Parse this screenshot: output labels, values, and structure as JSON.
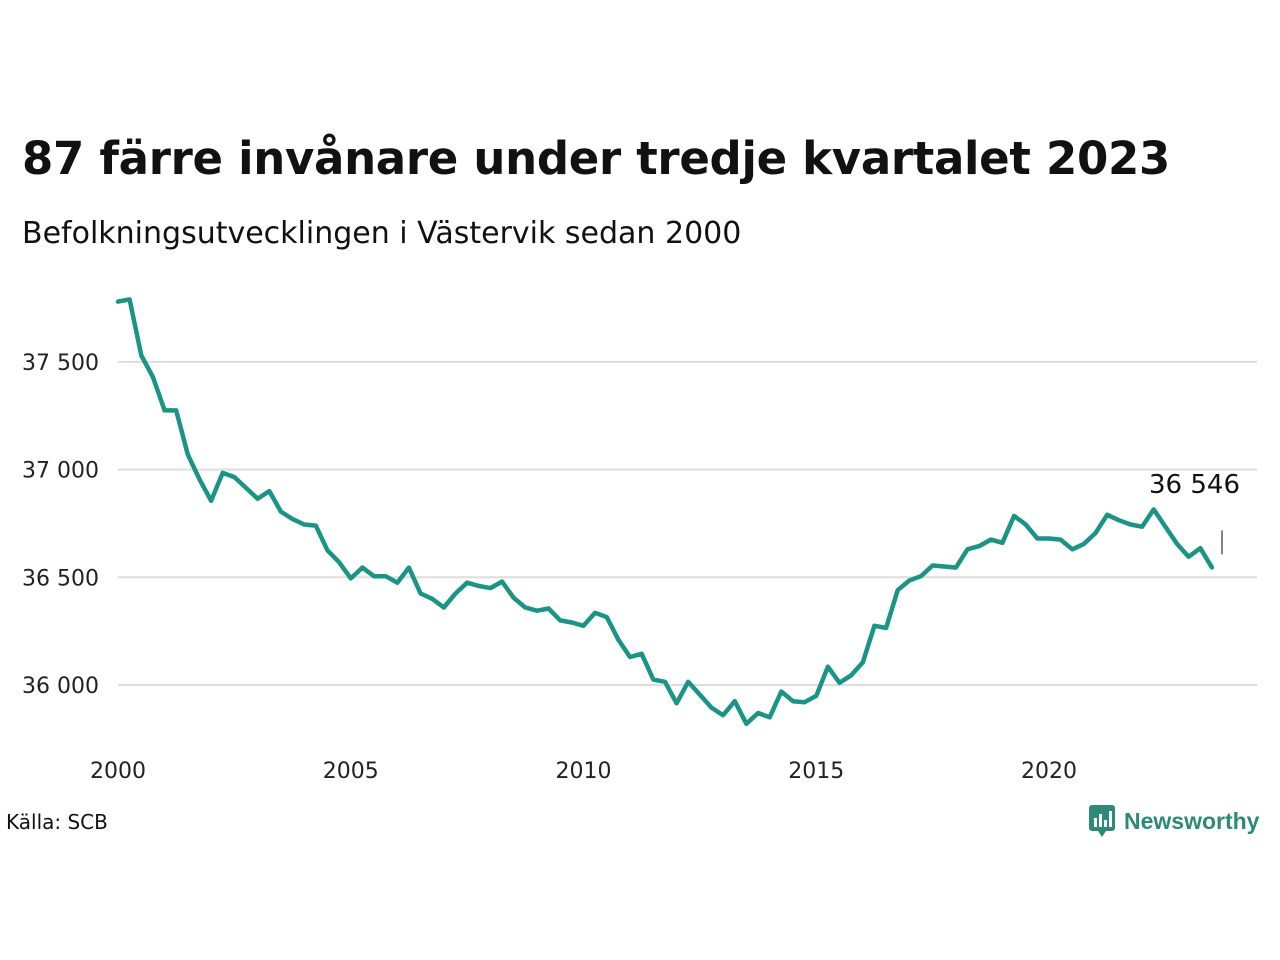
{
  "header": {
    "title": "87 färre invånare under tredje kvartalet 2023",
    "subtitle": "Befolkningsutvecklingen i Västervik sedan 2000"
  },
  "footer": {
    "source": "Källa: SCB",
    "brand": "Newsworthy",
    "brand_icon": "newsworthy-logo-icon"
  },
  "colors": {
    "line": "#1a9484",
    "grid": "#dddddd",
    "brand": "#2d8a78"
  },
  "chart_data": {
    "type": "line",
    "title": "87 färre invånare under tredje kvartalet 2023",
    "subtitle": "Befolkningsutvecklingen i Västervik sedan 2000",
    "xlabel": "",
    "ylabel": "",
    "xlim": [
      2000,
      2024.5
    ],
    "ylim": [
      35800,
      37830
    ],
    "y_ticks": [
      36000,
      36500,
      37000,
      37500
    ],
    "y_tick_labels": [
      "36 000",
      "36 500",
      "37 000",
      "37 500"
    ],
    "x_ticks": [
      2000,
      2005,
      2010,
      2015,
      2020
    ],
    "x_tick_labels": [
      "2000",
      "2005",
      "2010",
      "2015",
      "2020"
    ],
    "grid": "horizontal",
    "last_value_label": "36 546",
    "series": [
      {
        "x": [
          2000.0,
          2000.25,
          2000.5,
          2000.75,
          2001.0,
          2001.25,
          2001.5,
          2001.75,
          2002.0,
          2002.25,
          2002.5,
          2002.75,
          2003.0,
          2003.25,
          2003.5,
          2003.75,
          2004.0,
          2004.25,
          2004.5,
          2004.75,
          2005.0,
          2005.25,
          2005.5,
          2005.75,
          2006.0,
          2006.25,
          2006.5,
          2006.75,
          2007.0,
          2007.25,
          2007.5,
          2007.75,
          2008.0,
          2008.25,
          2008.5,
          2008.75,
          2009.0,
          2009.25,
          2009.5,
          2009.75,
          2010.0,
          2010.25,
          2010.5,
          2010.75,
          2011.0,
          2011.25,
          2011.5,
          2011.75,
          2012.0,
          2012.25,
          2012.5,
          2012.75,
          2013.0,
          2013.25,
          2013.5,
          2013.75,
          2014.0,
          2014.25,
          2014.5,
          2014.75,
          2015.0,
          2015.25,
          2015.5,
          2015.75,
          2016.0,
          2016.25,
          2016.5,
          2016.75,
          2017.0,
          2017.25,
          2017.5,
          2017.75,
          2018.0,
          2018.25,
          2018.5,
          2018.75,
          2019.0,
          2019.25,
          2019.5,
          2019.75,
          2020.0,
          2020.25,
          2020.5,
          2020.75,
          2021.0,
          2021.25,
          2021.5,
          2021.75,
          2022.0,
          2022.25,
          2022.5,
          2022.75,
          2023.0,
          2023.25,
          2023.5
        ],
        "values": [
          37780,
          37790,
          37530,
          37430,
          37275,
          37275,
          37070,
          36955,
          36855,
          36985,
          36965,
          36915,
          36865,
          36900,
          36805,
          36770,
          36745,
          36740,
          36625,
          36570,
          36495,
          36545,
          36505,
          36505,
          36475,
          36545,
          36425,
          36400,
          36360,
          36425,
          36475,
          36460,
          36450,
          36480,
          36405,
          36360,
          36345,
          36355,
          36300,
          36290,
          36275,
          36335,
          36315,
          36210,
          36130,
          36145,
          36025,
          36015,
          35915,
          36015,
          35955,
          35895,
          35860,
          35925,
          35820,
          35870,
          35850,
          35970,
          35925,
          35920,
          35950,
          36085,
          36010,
          36045,
          36105,
          36275,
          36265,
          36440,
          36485,
          36505,
          36555,
          36550,
          36545,
          36630,
          36645,
          36675,
          36660,
          36785,
          36745,
          36680,
          36680,
          36675,
          36630,
          36655,
          36705,
          36790,
          36765,
          36745,
          36735,
          36815,
          36735,
          36655,
          36595,
          36635,
          36546
        ]
      }
    ]
  }
}
